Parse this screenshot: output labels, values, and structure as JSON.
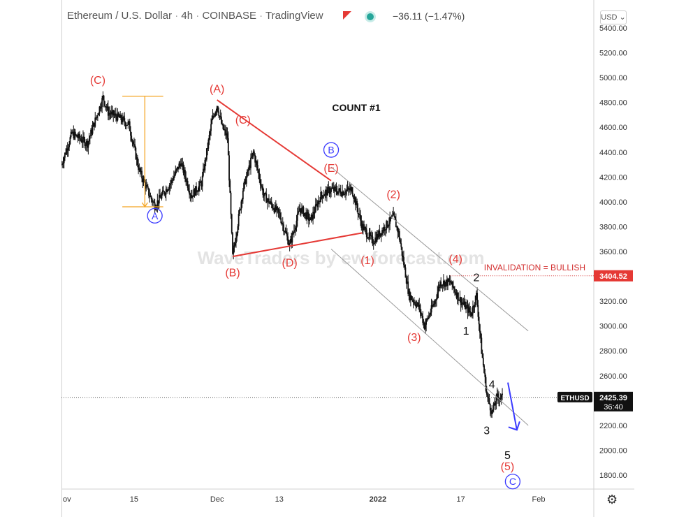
{
  "header": {
    "symbol": "Ethereum / U.S. Dollar",
    "interval": "4h",
    "exchange": "COINBASE",
    "platform": "TradingView",
    "change": "−36.11 (−1.47%)",
    "currency_button": "USD ⌄"
  },
  "watermark": "WaveTraders by ew-forecast.com",
  "count_label": "COUNT #1",
  "invalidation": {
    "text": "INVALIDATION = BULLISH",
    "price": 3404.52,
    "price_label": "3404.52"
  },
  "current": {
    "symbol": "ETHUSD",
    "price": 2425.39,
    "price_label": "2425.39",
    "countdown": "36:40"
  },
  "colors": {
    "wave_red": "#e53935",
    "wave_blue": "#3a3aff",
    "fib_orange": "#f4a522",
    "invalid_red": "#d32f2f"
  },
  "icons": {
    "settings": "gear-icon"
  },
  "chart_data": {
    "type": "candlestick",
    "ylim": [
      1700,
      5450
    ],
    "y_ticks": [
      5400,
      5200,
      5000,
      4800,
      4600,
      4400,
      4200,
      4000,
      3800,
      3600,
      3400,
      3200,
      3000,
      2800,
      2600,
      2400,
      2200,
      2000,
      1800
    ],
    "y_tick_labels": [
      "5400.00",
      "5200.00",
      "5000.00",
      "4800.00",
      "4600.00",
      "4400.00",
      "4200.00",
      "4000.00",
      "3800.00",
      "3600.00",
      "3400.00",
      "3200.00",
      "3000.00",
      "2800.00",
      "2600.00",
      "2400.00",
      "2200.00",
      "2000.00",
      "1800.00"
    ],
    "x_labels": [
      {
        "label": "ov",
        "date": "2021-11-01"
      },
      {
        "label": "15",
        "date": "2021-11-15"
      },
      {
        "label": "Dec",
        "date": "2021-12-01"
      },
      {
        "label": "13",
        "date": "2021-12-13"
      },
      {
        "label": "2022",
        "date": "2022-01-01"
      },
      {
        "label": "17",
        "date": "2022-01-17"
      },
      {
        "label": "Feb",
        "date": "2022-02-01"
      }
    ],
    "price_path": [
      {
        "date": "2021-11-01",
        "price": 4300
      },
      {
        "date": "2021-11-03",
        "price": 4550
      },
      {
        "date": "2021-11-06",
        "price": 4470
      },
      {
        "date": "2021-11-09",
        "price": 4840
      },
      {
        "date": "2021-11-10",
        "price": 4720
      },
      {
        "date": "2021-11-12",
        "price": 4680
      },
      {
        "date": "2021-11-14",
        "price": 4620
      },
      {
        "date": "2021-11-16",
        "price": 4250
      },
      {
        "date": "2021-11-18",
        "price": 4050
      },
      {
        "date": "2021-11-19",
        "price": 3970
      },
      {
        "date": "2021-11-22",
        "price": 4150
      },
      {
        "date": "2021-11-24",
        "price": 4320
      },
      {
        "date": "2021-11-26",
        "price": 4050
      },
      {
        "date": "2021-11-28",
        "price": 4150
      },
      {
        "date": "2021-11-30",
        "price": 4650
      },
      {
        "date": "2021-12-01",
        "price": 4780
      },
      {
        "date": "2021-12-02",
        "price": 4600
      },
      {
        "date": "2021-12-03",
        "price": 4520
      },
      {
        "date": "2021-12-04",
        "price": 3560
      },
      {
        "date": "2021-12-06",
        "price": 4100
      },
      {
        "date": "2021-12-08",
        "price": 4400
      },
      {
        "date": "2021-12-10",
        "price": 4050
      },
      {
        "date": "2021-12-11",
        "price": 4000
      },
      {
        "date": "2021-12-13",
        "price": 3900
      },
      {
        "date": "2021-12-15",
        "price": 3650
      },
      {
        "date": "2021-12-17",
        "price": 3950
      },
      {
        "date": "2021-12-19",
        "price": 3850
      },
      {
        "date": "2021-12-21",
        "price": 4050
      },
      {
        "date": "2021-12-23",
        "price": 4100
      },
      {
        "date": "2021-12-25",
        "price": 4080
      },
      {
        "date": "2021-12-27",
        "price": 4100
      },
      {
        "date": "2021-12-29",
        "price": 3800
      },
      {
        "date": "2021-12-31",
        "price": 3680
      },
      {
        "date": "2022-01-02",
        "price": 3780
      },
      {
        "date": "2022-01-04",
        "price": 3880
      },
      {
        "date": "2022-01-05",
        "price": 3750
      },
      {
        "date": "2022-01-07",
        "price": 3250
      },
      {
        "date": "2022-01-09",
        "price": 3150
      },
      {
        "date": "2022-01-10",
        "price": 3000
      },
      {
        "date": "2022-01-12",
        "price": 3200
      },
      {
        "date": "2022-01-13",
        "price": 3350
      },
      {
        "date": "2022-01-15",
        "price": 3350
      },
      {
        "date": "2022-01-17",
        "price": 3200
      },
      {
        "date": "2022-01-19",
        "price": 3100
      },
      {
        "date": "2022-01-20",
        "price": 3250
      },
      {
        "date": "2022-01-21",
        "price": 2800
      },
      {
        "date": "2022-01-22",
        "price": 2450
      },
      {
        "date": "2022-01-23",
        "price": 2300
      },
      {
        "date": "2022-01-24",
        "price": 2430
      },
      {
        "date": "2022-01-25",
        "price": 2425
      }
    ],
    "wave_labels": [
      {
        "text": "(C)",
        "date": "2021-11-08",
        "price": 4950,
        "color": "red"
      },
      {
        "text": "A",
        "date": "2021-11-19",
        "price": 3860,
        "color": "blue",
        "circled": true
      },
      {
        "text": "(A)",
        "date": "2021-12-01",
        "price": 4880,
        "color": "red"
      },
      {
        "text": "(C)",
        "date": "2021-12-06",
        "price": 4630,
        "color": "red"
      },
      {
        "text": "(B)",
        "date": "2021-12-04",
        "price": 3400,
        "color": "red"
      },
      {
        "text": "(D)",
        "date": "2021-12-15",
        "price": 3480,
        "color": "red"
      },
      {
        "text": "B",
        "date": "2021-12-23",
        "price": 4390,
        "color": "blue",
        "circled": true
      },
      {
        "text": "(E)",
        "date": "2021-12-23",
        "price": 4240,
        "color": "red"
      },
      {
        "text": "(1)",
        "date": "2021-12-30",
        "price": 3500,
        "color": "red"
      },
      {
        "text": "(2)",
        "date": "2022-01-04",
        "price": 4030,
        "color": "red"
      },
      {
        "text": "(3)",
        "date": "2022-01-08",
        "price": 2880,
        "color": "red"
      },
      {
        "text": "(4)",
        "date": "2022-01-16",
        "price": 3510,
        "color": "red"
      },
      {
        "text": "2",
        "date": "2022-01-20",
        "price": 3360,
        "color": "black"
      },
      {
        "text": "1",
        "date": "2022-01-18",
        "price": 2930,
        "color": "black"
      },
      {
        "text": "4",
        "date": "2022-01-23",
        "price": 2500,
        "color": "black"
      },
      {
        "text": "3",
        "date": "2022-01-22",
        "price": 2130,
        "color": "black"
      },
      {
        "text": "5",
        "date": "2022-01-26",
        "price": 1930,
        "color": "black"
      },
      {
        "text": "(5)",
        "date": "2022-01-26",
        "price": 1840,
        "color": "red"
      },
      {
        "text": "C",
        "date": "2022-01-27",
        "price": 1720,
        "color": "blue",
        "circled": true
      }
    ],
    "triangle_lines": [
      {
        "from": {
          "date": "2021-12-01",
          "price": 4820
        },
        "to": {
          "date": "2021-12-23",
          "price": 4170
        }
      },
      {
        "from": {
          "date": "2021-12-04",
          "price": 3560
        },
        "to": {
          "date": "2021-12-29",
          "price": 3750
        }
      }
    ],
    "channel_lines": [
      {
        "from": {
          "date": "2021-12-23",
          "price": 4280
        },
        "to": {
          "date": "2022-01-30",
          "price": 2960
        }
      },
      {
        "from": {
          "date": "2021-12-23",
          "price": 3620
        },
        "to": {
          "date": "2022-01-30",
          "price": 2200
        }
      }
    ],
    "fib_range": {
      "start_date": "2021-11-13",
      "end_date": "2021-11-19",
      "high": 4850,
      "low": 3960
    },
    "forecast_arrow": {
      "from": {
        "date": "2022-01-25",
        "price": 2500
      },
      "to": {
        "date": "2022-01-27",
        "price": 2220
      }
    }
  }
}
